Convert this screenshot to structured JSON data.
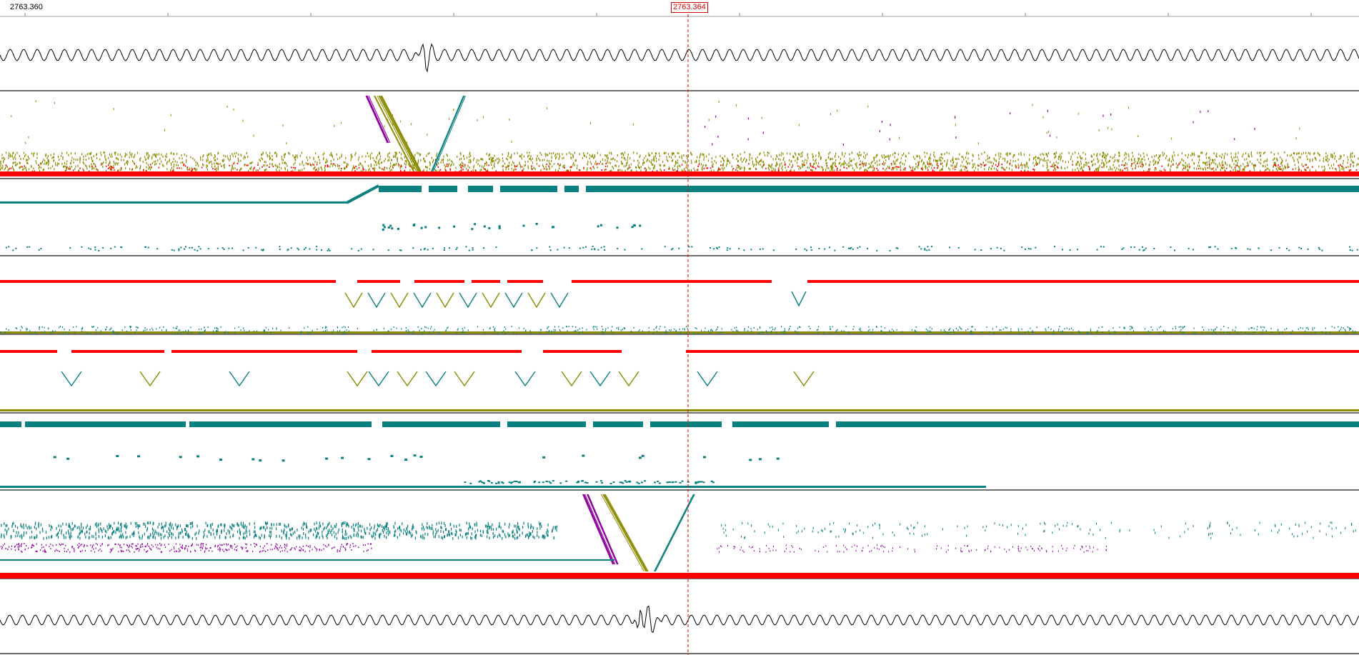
{
  "ruler": {
    "start_time": "2763.360",
    "cursor_time": "2763.364"
  },
  "colors": {
    "waveform": "#000000",
    "cursor": "#e00000",
    "olive": "#8b8b00",
    "red": "#ff0000",
    "teal": "#0a8080",
    "purple": "#9000a0",
    "separator": "#707070"
  },
  "tracks": [
    {
      "id": "waveform-top",
      "kind": "waveform"
    },
    {
      "id": "channel-1",
      "kind": "spectrogram"
    },
    {
      "id": "channel-2",
      "kind": "spectrogram"
    },
    {
      "id": "channel-3",
      "kind": "spectrogram"
    },
    {
      "id": "channel-4",
      "kind": "spectrogram"
    },
    {
      "id": "channel-5",
      "kind": "spectrogram"
    },
    {
      "id": "channel-6",
      "kind": "spectrogram"
    },
    {
      "id": "waveform-bottom",
      "kind": "waveform"
    }
  ]
}
